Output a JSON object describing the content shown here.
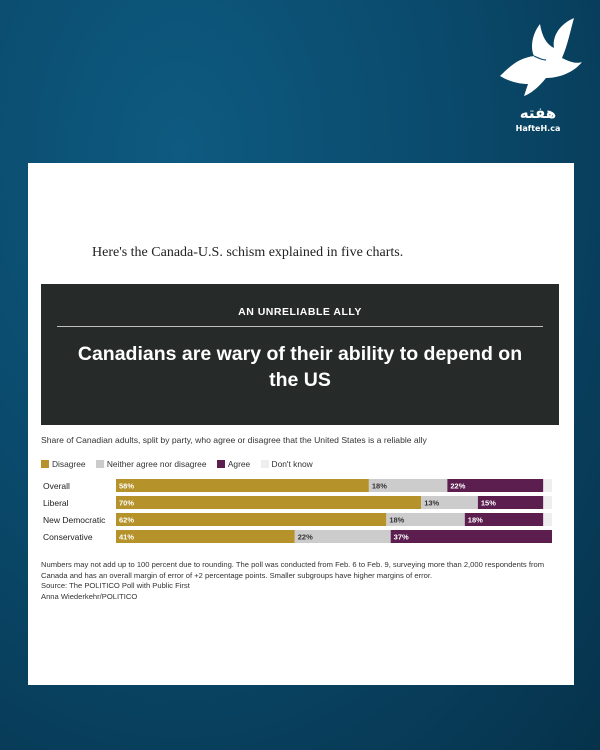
{
  "logo": {
    "persian": "هفته",
    "site": "HafteH.ca"
  },
  "intro": "Here's the Canada-U.S. schism explained in five charts.",
  "banner": {
    "kicker": "AN UNRELIABLE ALLY",
    "headline": "Canadians are wary of their ability to depend on the US"
  },
  "subtitle": "Share of Canadian adults, split by party, who agree or disagree that the United States is a reliable ally",
  "legend": [
    {
      "label": "Disagree",
      "color": "#b5922a"
    },
    {
      "label": "Neither agree nor disagree",
      "color": "#cccccc"
    },
    {
      "label": "Agree",
      "color": "#5b1e4f"
    },
    {
      "label": "Don't know",
      "color": "#eeeeee"
    }
  ],
  "chart_data": {
    "type": "bar",
    "orientation": "horizontal",
    "stacked": true,
    "title": "Canadians are wary of their ability to depend on the US",
    "categories": [
      "Overall",
      "Liberal",
      "New Democratic",
      "Conservative"
    ],
    "series": [
      {
        "name": "Disagree",
        "values": [
          58,
          70,
          62,
          41
        ],
        "labels": [
          "58%",
          "70%",
          "62%",
          "41%"
        ],
        "color": "#b5922a"
      },
      {
        "name": "Neither agree nor disagree",
        "values": [
          18,
          13,
          18,
          22
        ],
        "labels": [
          "18%",
          "13%",
          "18%",
          "22%"
        ],
        "color": "#cccccc"
      },
      {
        "name": "Agree",
        "values": [
          22,
          15,
          18,
          37
        ],
        "labels": [
          "22%",
          "15%",
          "18%",
          "37%"
        ],
        "color": "#5b1e4f"
      },
      {
        "name": "Don't know",
        "values": [
          2,
          2,
          2,
          0
        ],
        "labels": [
          "",
          "",
          "",
          ""
        ],
        "color": "#eeeeee"
      }
    ],
    "xlim": [
      0,
      100
    ]
  },
  "notes": {
    "text": "Numbers may not add up to 100 percent due to rounding. The poll was conducted from Feb. 6 to Feb. 9, surveying more than 2,000 respondents from Canada and has an overall margin of error of +2 percentage points. Smaller subgroups have higher margins of error.",
    "source": "Source: The POLITICO Poll with Public First",
    "credit": "Anna Wiederkehr/POLITICO"
  }
}
